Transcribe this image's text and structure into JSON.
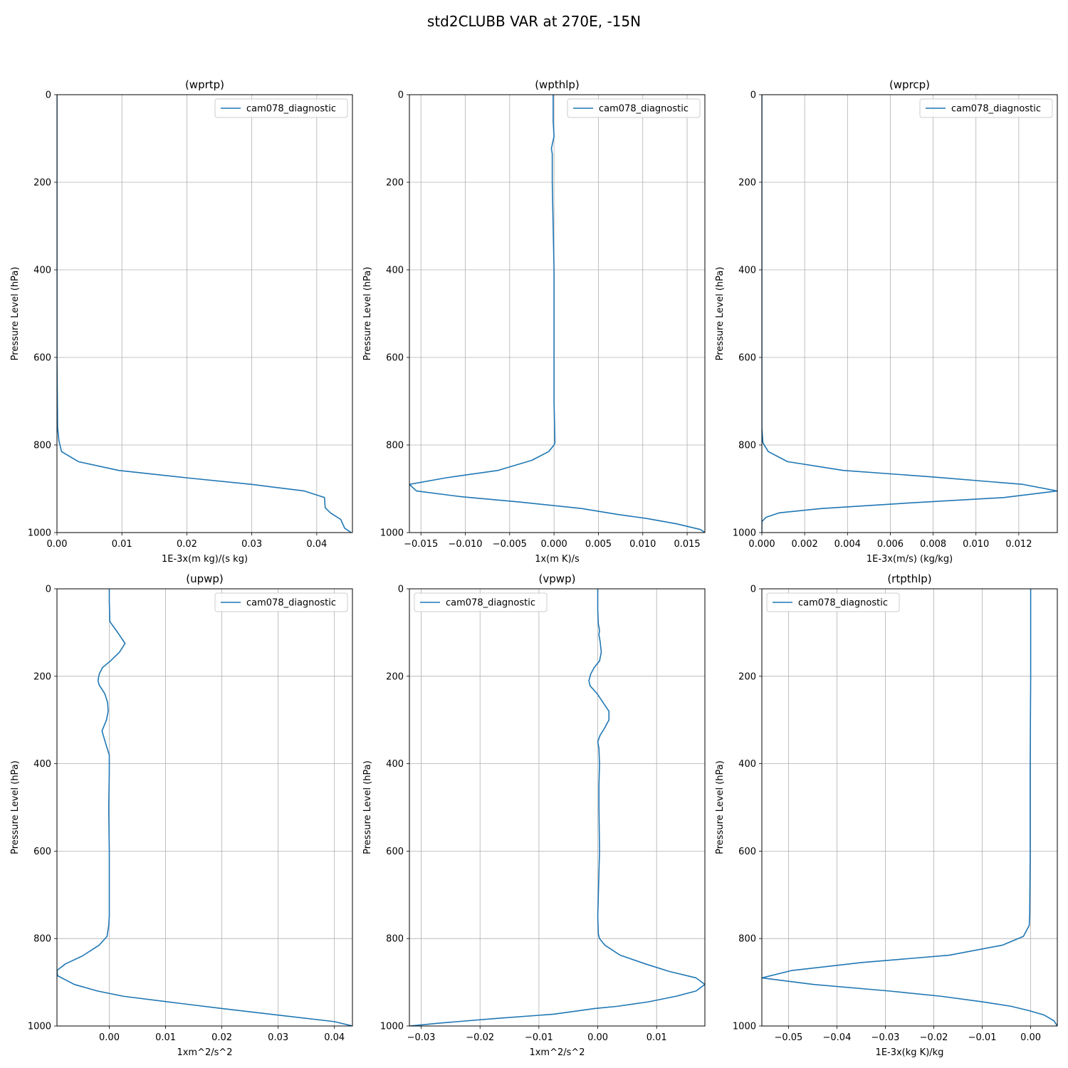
{
  "suptitle": "std2CLUBB VAR at 270E, -15N",
  "series_color": "#1f77b4",
  "chart_data": [
    {
      "type": "line",
      "title": "(wprtp)",
      "xlabel": "1E-3x(m kg)/(s kg)",
      "ylabel": "Pressure Level (hPa)",
      "xlim": [
        0,
        0.0455
      ],
      "ylim": [
        1000,
        0
      ],
      "y_inverted": true,
      "grid": true,
      "legend_loc": "upper right",
      "xticks": [
        0,
        0.01,
        0.02,
        0.03,
        0.04
      ],
      "xtick_labels": [
        "0.00",
        "0.01",
        "0.02",
        "0.03",
        "0.04"
      ],
      "yticks": [
        0,
        200,
        400,
        600,
        800,
        1000
      ],
      "ytick_labels": [
        "0",
        "200",
        "400",
        "600",
        "800",
        "1000"
      ],
      "series": [
        {
          "name": "cam078_diagnostic",
          "x": [
            0,
            0,
            0,
            0.0001,
            0.0003,
            0.0007,
            0.0033,
            0.0095,
            0.02,
            0.03,
            0.0381,
            0.0412,
            0.0413,
            0.0421,
            0.0437,
            0.0443,
            0.0453
          ],
          "y": [
            0,
            200,
            600,
            760,
            790,
            815,
            838,
            858,
            875,
            890,
            905,
            920,
            943,
            955,
            970,
            990,
            1000
          ]
        }
      ]
    },
    {
      "type": "line",
      "title": "(wpthlp)",
      "xlabel": "1x(m K)/s",
      "ylabel": "Pressure Level (hPa)",
      "xlim": [
        -0.0163,
        0.017
      ],
      "ylim": [
        1000,
        0
      ],
      "y_inverted": true,
      "grid": true,
      "legend_loc": "upper right",
      "xticks": [
        -0.015,
        -0.01,
        -0.005,
        0,
        0.005,
        0.01,
        0.015
      ],
      "xtick_labels": [
        "−0.015",
        "−0.010",
        "−0.005",
        "0.000",
        "0.005",
        "0.010",
        "0.015"
      ],
      "yticks": [
        0,
        200,
        400,
        600,
        800,
        1000
      ],
      "ytick_labels": [
        "0",
        "200",
        "400",
        "600",
        "800",
        "1000"
      ],
      "series": [
        {
          "name": "cam078_diagnostic",
          "x": [
            -0.0001,
            -0.0001,
            0,
            -0.0003,
            -0.0002,
            -0.0002,
            -0.0001,
            0,
            0,
            0,
            0,
            0.0001,
            0,
            -0.0006,
            -0.0025,
            -0.0063,
            -0.0122,
            -0.0163,
            -0.0155,
            -0.0105,
            -0.004,
            0.0031,
            0.007,
            0.0105,
            0.0138,
            0.0165,
            0.017
          ],
          "y": [
            0,
            60,
            95,
            123,
            135,
            200,
            300,
            400,
            500,
            600,
            700,
            795,
            800,
            815,
            835,
            858,
            875,
            890,
            905,
            918,
            930,
            945,
            958,
            968,
            980,
            993,
            1000
          ]
        }
      ]
    },
    {
      "type": "line",
      "title": "(wprcp)",
      "xlabel": "1E-3x(m/s) (kg/kg)",
      "ylabel": "Pressure Level (hPa)",
      "xlim": [
        0,
        0.0138
      ],
      "ylim": [
        1000,
        0
      ],
      "y_inverted": true,
      "grid": true,
      "legend_loc": "upper right",
      "xticks": [
        0,
        0.002,
        0.004,
        0.006,
        0.008,
        0.01,
        0.012
      ],
      "xtick_labels": [
        "0.000",
        "0.002",
        "0.004",
        "0.006",
        "0.008",
        "0.010",
        "0.012"
      ],
      "yticks": [
        0,
        200,
        400,
        600,
        800,
        1000
      ],
      "ytick_labels": [
        "0",
        "200",
        "400",
        "600",
        "800",
        "1000"
      ],
      "series": [
        {
          "name": "cam078_diagnostic",
          "x": [
            0,
            0,
            0,
            0,
            5e-05,
            0.0003,
            0.0012,
            0.0038,
            0.008,
            0.0122,
            0.0138,
            0.0113,
            0.007,
            0.0028,
            0.0008,
            0.0002,
            0,
            0
          ],
          "y": [
            0,
            200,
            600,
            760,
            795,
            815,
            838,
            858,
            873,
            890,
            905,
            920,
            932,
            945,
            955,
            965,
            975,
            1000
          ]
        }
      ]
    },
    {
      "type": "line",
      "title": "(upwp)",
      "xlabel": "1xm^2/s^2",
      "ylabel": "Pressure Level (hPa)",
      "xlim": [
        -0.0093,
        0.0432
      ],
      "ylim": [
        1000,
        0
      ],
      "y_inverted": true,
      "grid": true,
      "legend_loc": "upper right",
      "xticks": [
        0,
        0.01,
        0.02,
        0.03,
        0.04
      ],
      "xtick_labels": [
        "0.00",
        "0.01",
        "0.02",
        "0.03",
        "0.04"
      ],
      "yticks": [
        0,
        200,
        400,
        600,
        800,
        1000
      ],
      "ytick_labels": [
        "0",
        "200",
        "400",
        "600",
        "800",
        "1000"
      ],
      "series": [
        {
          "name": "cam078_diagnostic",
          "x": [
            0,
            0,
            0.0001,
            0.0015,
            0.0028,
            0.0018,
            0.0002,
            -0.0012,
            -0.0018,
            -0.002,
            -0.0018,
            -0.0008,
            -0.0003,
            -0.0002,
            -0.0005,
            -0.0013,
            -0.0005,
            0,
            0,
            -0.0001,
            0,
            0,
            0,
            -0.0001,
            -0.0004,
            -0.0018,
            -0.0048,
            -0.0078,
            -0.0093,
            -0.0092,
            -0.0062,
            -0.0021,
            0.0025,
            0.0105,
            0.02,
            0.03,
            0.04,
            0.0432
          ],
          "y": [
            0,
            30,
            75,
            100,
            125,
            145,
            165,
            180,
            195,
            210,
            220,
            240,
            260,
            280,
            300,
            325,
            360,
            380,
            420,
            500,
            600,
            700,
            750,
            770,
            795,
            815,
            840,
            858,
            873,
            885,
            905,
            920,
            932,
            945,
            960,
            975,
            990,
            1000
          ]
        }
      ]
    },
    {
      "type": "line",
      "title": "(vpwp)",
      "xlabel": "1xm^2/s^2",
      "ylabel": "Pressure Level (hPa)",
      "xlim": [
        -0.032,
        0.0182
      ],
      "ylim": [
        1000,
        0
      ],
      "y_inverted": true,
      "grid": true,
      "legend_loc": "upper left",
      "xticks": [
        -0.03,
        -0.02,
        -0.01,
        0,
        0.01
      ],
      "xtick_labels": [
        "−0.03",
        "−0.02",
        "−0.01",
        "0.00",
        "0.01"
      ],
      "yticks": [
        0,
        200,
        400,
        600,
        800,
        1000
      ],
      "ytick_labels": [
        "0",
        "200",
        "400",
        "600",
        "800",
        "1000"
      ],
      "series": [
        {
          "name": "cam078_diagnostic",
          "x": [
            0,
            0,
            0.0001,
            0.0003,
            0.0002,
            0.0004,
            0.0006,
            0.0003,
            -0.0006,
            -0.0012,
            -0.0015,
            -0.0013,
            -0.0001,
            0.0009,
            0.0019,
            0.0019,
            0.0011,
            0.0004,
            0,
            0.0002,
            0.0003,
            0.0002,
            0.0002,
            0.0003,
            0.0001,
            0,
            0.0001,
            0.0003,
            0.0012,
            0.0038,
            0.0081,
            0.0121,
            0.0167,
            0.0182,
            0.0167,
            0.0133,
            0.0085,
            0.0033,
            -0.0005,
            -0.0075,
            -0.0175,
            -0.0265,
            -0.032
          ],
          "y": [
            0,
            50,
            80,
            95,
            105,
            120,
            145,
            165,
            180,
            195,
            210,
            222,
            240,
            260,
            280,
            300,
            320,
            335,
            350,
            365,
            400,
            450,
            500,
            600,
            700,
            750,
            790,
            800,
            815,
            838,
            858,
            875,
            890,
            905,
            920,
            932,
            945,
            955,
            960,
            973,
            983,
            993,
            1000
          ]
        }
      ]
    },
    {
      "type": "line",
      "title": "(rtpthlp)",
      "xlabel": "1E-3x(kg K)/kg",
      "ylabel": "Pressure Level (hPa)",
      "xlim": [
        -0.0555,
        0.0055
      ],
      "ylim": [
        1000,
        0
      ],
      "y_inverted": true,
      "grid": true,
      "legend_loc": "upper left",
      "xticks": [
        -0.05,
        -0.04,
        -0.03,
        -0.02,
        -0.01,
        0
      ],
      "xtick_labels": [
        "−0.05",
        "−0.04",
        "−0.03",
        "−0.02",
        "−0.01",
        "0.00"
      ],
      "yticks": [
        0,
        200,
        400,
        600,
        800,
        1000
      ],
      "ytick_labels": [
        "0",
        "200",
        "400",
        "600",
        "800",
        "1000"
      ],
      "series": [
        {
          "name": "cam078_diagnostic",
          "x": [
            0,
            0,
            -0.0001,
            -0.0001,
            -0.0002,
            -0.0003,
            -0.0015,
            -0.0058,
            -0.0168,
            -0.035,
            -0.0493,
            -0.0555,
            -0.0448,
            -0.0292,
            -0.0185,
            -0.0098,
            -0.004,
            -0.0003,
            0.0028,
            0.0048,
            0.0055
          ],
          "y": [
            0,
            200,
            400,
            600,
            740,
            770,
            795,
            815,
            838,
            855,
            873,
            890,
            905,
            920,
            932,
            945,
            955,
            965,
            975,
            988,
            1000
          ]
        }
      ]
    }
  ]
}
